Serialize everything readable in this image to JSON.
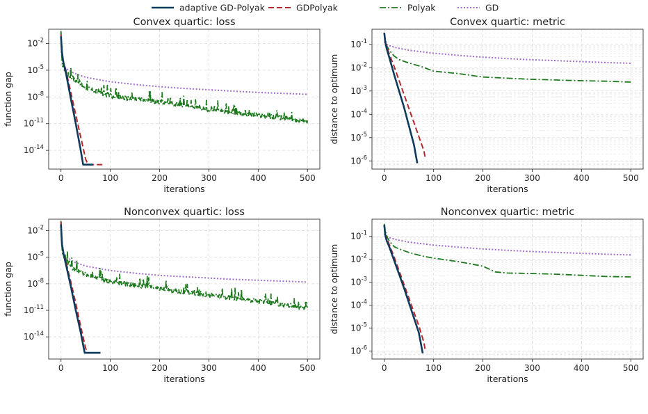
{
  "legend": {
    "placement": "top-center",
    "entries": [
      {
        "label": "adaptive GD-Polyak",
        "color": "#0e3a5c",
        "style": "solid"
      },
      {
        "label": "GDPolyak",
        "color": "#b22a2e",
        "style": "dashed"
      },
      {
        "label": "Polyak",
        "color": "#1f7a1f",
        "style": "dashdot"
      },
      {
        "label": "GD",
        "color": "#a06cc8",
        "style": "dotted"
      }
    ]
  },
  "chart_data": [
    {
      "type": "line",
      "title": "Convex quartic: loss",
      "xlabel": "iterations",
      "ylabel": "function gap",
      "xlim": [
        -25,
        525
      ],
      "xticks": [
        0,
        100,
        200,
        300,
        400,
        500
      ],
      "yscale": "log",
      "ylim_log10": [
        -16.1,
        -0.4
      ],
      "yticks_log10": [
        -2,
        -5,
        -8,
        -11,
        -14
      ],
      "ytick_labels": [
        {
          "base": "10",
          "exp": "-2"
        },
        {
          "base": "10",
          "exp": "-5"
        },
        {
          "base": "10",
          "exp": "-8"
        },
        {
          "base": "10",
          "exp": "-11"
        },
        {
          "base": "10",
          "exp": "-14"
        }
      ],
      "grid": true,
      "series": [
        {
          "name": "adaptive GD-Polyak",
          "x": [
            0,
            2,
            5,
            10,
            20,
            30,
            40,
            45,
            60,
            65
          ],
          "y_log10": [
            -1.2,
            -3.0,
            -4.2,
            -5.3,
            -8.2,
            -11.0,
            -14.0,
            -15.6,
            -15.6,
            -15.6
          ]
        },
        {
          "name": "GDPolyak",
          "x": [
            0,
            2,
            5,
            10,
            20,
            30,
            40,
            50,
            55,
            60,
            70,
            80,
            85
          ],
          "y_log10": [
            -1.0,
            -2.8,
            -4.1,
            -5.0,
            -7.5,
            -10.0,
            -12.5,
            -15.0,
            -15.6,
            -15.6,
            -15.6,
            -15.6,
            -15.6
          ]
        },
        {
          "name": "Polyak",
          "x": [
            0,
            1,
            3,
            10,
            25,
            50,
            100,
            150,
            200,
            250,
            300,
            350,
            400,
            450,
            500
          ],
          "y_log10": [
            -0.6,
            -2.8,
            -4.6,
            -5.3,
            -6.0,
            -7.0,
            -8.0,
            -8.3,
            -8.6,
            -9.0,
            -9.5,
            -9.8,
            -10.1,
            -10.4,
            -10.8
          ],
          "noise": 1.2
        },
        {
          "name": "GD",
          "x": [
            0,
            1,
            5,
            10,
            25,
            50,
            100,
            150,
            200,
            250,
            300,
            350,
            400,
            450,
            500
          ],
          "y_log10": [
            -0.8,
            -3.0,
            -4.2,
            -4.8,
            -5.3,
            -5.8,
            -6.3,
            -6.6,
            -6.85,
            -7.05,
            -7.2,
            -7.35,
            -7.5,
            -7.6,
            -7.7
          ]
        }
      ]
    },
    {
      "type": "line",
      "title": "Convex quartic: metric",
      "xlabel": "iterations",
      "ylabel": "distance to optimum",
      "xlim": [
        -25,
        525
      ],
      "xticks": [
        0,
        100,
        200,
        300,
        400,
        500
      ],
      "yscale": "log",
      "ylim_log10": [
        -6.35,
        -0.35
      ],
      "yticks_log10": [
        -1,
        -2,
        -3,
        -4,
        -5,
        -6
      ],
      "ytick_labels": [
        {
          "base": "10",
          "exp": "-1"
        },
        {
          "base": "10",
          "exp": "-2"
        },
        {
          "base": "10",
          "exp": "-3"
        },
        {
          "base": "10",
          "exp": "-4"
        },
        {
          "base": "10",
          "exp": "-5"
        },
        {
          "base": "10",
          "exp": "-6"
        }
      ],
      "grid": true,
      "series": [
        {
          "name": "adaptive GD-Polyak",
          "x": [
            0,
            2,
            5,
            10,
            20,
            30,
            40,
            50,
            60,
            67
          ],
          "y_log10": [
            -0.5,
            -0.9,
            -1.2,
            -1.55,
            -2.3,
            -3.0,
            -3.7,
            -4.5,
            -5.3,
            -6.1
          ]
        },
        {
          "name": "GDPolyak",
          "x": [
            0,
            2,
            5,
            10,
            20,
            30,
            40,
            50,
            60,
            70,
            80,
            83
          ],
          "y_log10": [
            -0.5,
            -0.85,
            -1.1,
            -1.4,
            -1.95,
            -2.55,
            -3.15,
            -3.75,
            -4.35,
            -4.95,
            -5.55,
            -5.85
          ]
        },
        {
          "name": "Polyak",
          "x": [
            0,
            2,
            5,
            10,
            20,
            30,
            50,
            75,
            100,
            150,
            200,
            250,
            300,
            350,
            400,
            450,
            500
          ],
          "y_log10": [
            -0.5,
            -0.8,
            -1.05,
            -1.25,
            -1.5,
            -1.65,
            -1.8,
            -1.95,
            -2.15,
            -2.25,
            -2.4,
            -2.45,
            -2.5,
            -2.53,
            -2.56,
            -2.58,
            -2.62
          ]
        },
        {
          "name": "GD",
          "x": [
            0,
            5,
            10,
            25,
            50,
            100,
            150,
            200,
            250,
            300,
            350,
            400,
            450,
            500
          ],
          "y_log10": [
            -0.9,
            -1.0,
            -1.05,
            -1.15,
            -1.25,
            -1.38,
            -1.47,
            -1.55,
            -1.61,
            -1.66,
            -1.7,
            -1.74,
            -1.78,
            -1.81
          ]
        }
      ]
    },
    {
      "type": "line",
      "title": "Nonconvex quartic: loss",
      "xlabel": "iterations",
      "ylabel": "function gap",
      "xlim": [
        -25,
        525
      ],
      "xticks": [
        0,
        100,
        200,
        300,
        400,
        500
      ],
      "yscale": "log",
      "ylim_log10": [
        -16.5,
        -0.7
      ],
      "yticks_log10": [
        -2,
        -5,
        -8,
        -11,
        -14
      ],
      "ytick_labels": [
        {
          "base": "10",
          "exp": "-2"
        },
        {
          "base": "10",
          "exp": "-5"
        },
        {
          "base": "10",
          "exp": "-8"
        },
        {
          "base": "10",
          "exp": "-11"
        },
        {
          "base": "10",
          "exp": "-14"
        }
      ],
      "grid": true,
      "series": [
        {
          "name": "adaptive GD-Polyak",
          "x": [
            0,
            2,
            5,
            10,
            20,
            30,
            40,
            48,
            55,
            70,
            80
          ],
          "y_log10": [
            -1.3,
            -3.5,
            -4.6,
            -5.8,
            -8.3,
            -11.0,
            -13.5,
            -15.8,
            -15.8,
            -15.8,
            -15.8
          ]
        },
        {
          "name": "GDPolyak",
          "x": [
            0,
            2,
            5,
            10,
            20,
            30,
            40,
            50,
            55,
            65,
            80
          ],
          "y_log10": [
            -1.0,
            -3.2,
            -4.5,
            -5.5,
            -7.8,
            -10.2,
            -12.8,
            -15.3,
            -15.8,
            -15.8,
            -15.8
          ]
        },
        {
          "name": "Polyak",
          "x": [
            0,
            1,
            3,
            10,
            25,
            50,
            100,
            150,
            200,
            250,
            300,
            350,
            400,
            450,
            500
          ],
          "y_log10": [
            -0.9,
            -3.0,
            -4.6,
            -5.5,
            -6.3,
            -7.0,
            -7.8,
            -8.2,
            -8.6,
            -9.0,
            -9.3,
            -9.7,
            -10.0,
            -10.4,
            -10.8
          ],
          "noise": 1.3
        },
        {
          "name": "GD",
          "x": [
            0,
            1,
            5,
            10,
            25,
            50,
            100,
            150,
            200,
            250,
            300,
            350,
            400,
            450,
            500
          ],
          "y_log10": [
            -1.2,
            -3.2,
            -4.4,
            -4.9,
            -5.5,
            -6.0,
            -6.5,
            -6.8,
            -7.05,
            -7.2,
            -7.35,
            -7.5,
            -7.6,
            -7.7,
            -7.8
          ]
        }
      ]
    },
    {
      "type": "line",
      "title": "Nonconvex quartic: metric",
      "xlabel": "iterations",
      "ylabel": "distance to optimum",
      "xlim": [
        -25,
        525
      ],
      "xticks": [
        0,
        100,
        200,
        300,
        400,
        500
      ],
      "yscale": "log",
      "ylim_log10": [
        -6.35,
        -0.25
      ],
      "yticks_log10": [
        -1,
        -2,
        -3,
        -4,
        -5,
        -6
      ],
      "ytick_labels": [
        {
          "base": "10",
          "exp": "-1"
        },
        {
          "base": "10",
          "exp": "-2"
        },
        {
          "base": "10",
          "exp": "-3"
        },
        {
          "base": "10",
          "exp": "-4"
        },
        {
          "base": "10",
          "exp": "-5"
        },
        {
          "base": "10",
          "exp": "-6"
        }
      ],
      "grid": true,
      "series": [
        {
          "name": "adaptive GD-Polyak",
          "x": [
            0,
            2,
            5,
            10,
            20,
            30,
            40,
            50,
            60,
            70,
            78
          ],
          "y_log10": [
            -0.5,
            -0.95,
            -1.2,
            -1.45,
            -2.05,
            -2.65,
            -3.25,
            -3.9,
            -4.55,
            -5.2,
            -6.1
          ]
        },
        {
          "name": "GDPolyak",
          "x": [
            0,
            2,
            5,
            10,
            20,
            30,
            40,
            50,
            60,
            70,
            80,
            83
          ],
          "y_log10": [
            -0.5,
            -0.9,
            -1.1,
            -1.35,
            -1.9,
            -2.5,
            -3.1,
            -3.7,
            -4.3,
            -4.9,
            -5.6,
            -5.95
          ]
        },
        {
          "name": "Polyak",
          "x": [
            0,
            2,
            5,
            10,
            20,
            30,
            50,
            75,
            100,
            150,
            200,
            225,
            250,
            300,
            350,
            400,
            450,
            500
          ],
          "y_log10": [
            -0.45,
            -0.75,
            -1.0,
            -1.2,
            -1.45,
            -1.55,
            -1.7,
            -1.85,
            -1.95,
            -2.1,
            -2.3,
            -2.55,
            -2.6,
            -2.62,
            -2.65,
            -2.7,
            -2.75,
            -2.77
          ]
        },
        {
          "name": "GD",
          "x": [
            0,
            5,
            10,
            25,
            50,
            100,
            150,
            200,
            250,
            300,
            350,
            400,
            450,
            500
          ],
          "y_log10": [
            -0.9,
            -1.0,
            -1.05,
            -1.15,
            -1.25,
            -1.38,
            -1.47,
            -1.55,
            -1.61,
            -1.66,
            -1.7,
            -1.74,
            -1.78,
            -1.81
          ]
        }
      ]
    }
  ]
}
